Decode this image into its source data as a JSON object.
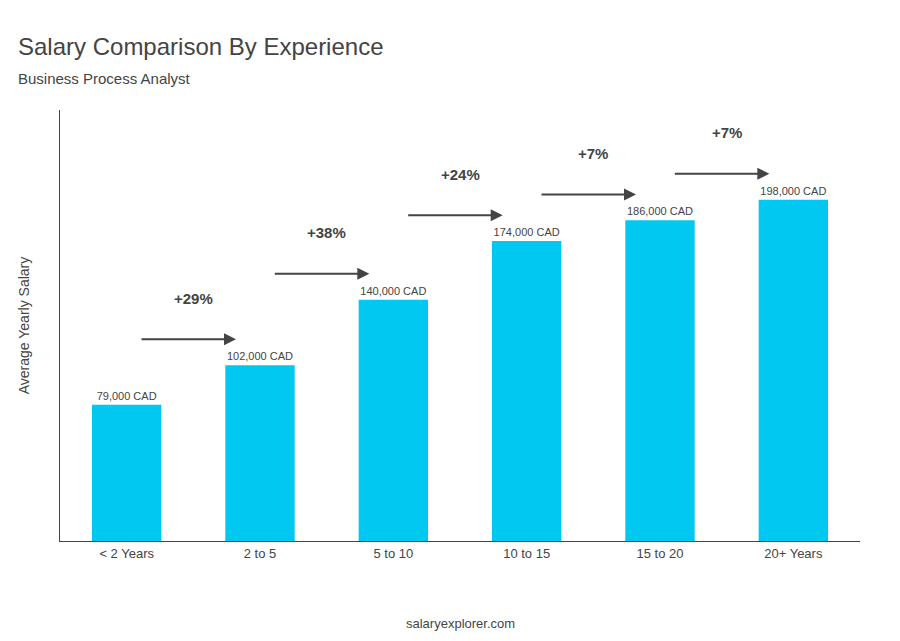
{
  "chart_data": {
    "type": "bar",
    "title": "Salary Comparison By Experience",
    "subtitle": "Business Process Analyst",
    "ylabel": "Average Yearly Salary",
    "categories": [
      "< 2 Years",
      "2 to 5",
      "5 to 10",
      "10 to 15",
      "15 to 20",
      "20+ Years"
    ],
    "values": [
      79000,
      102000,
      140000,
      174000,
      186000,
      198000
    ],
    "value_labels": [
      "79,000 CAD",
      "102,000 CAD",
      "140,000 CAD",
      "174,000 CAD",
      "186,000 CAD",
      "198,000 CAD"
    ],
    "data_labels": true,
    "annotations": [
      "+29%",
      "+38%",
      "+24%",
      "+7%",
      "+7%"
    ],
    "watermark": "salaryexplorer.com",
    "color": "#00c8f0",
    "ylim": [
      0,
      250000
    ],
    "grid": false,
    "tick_labels": "x"
  }
}
